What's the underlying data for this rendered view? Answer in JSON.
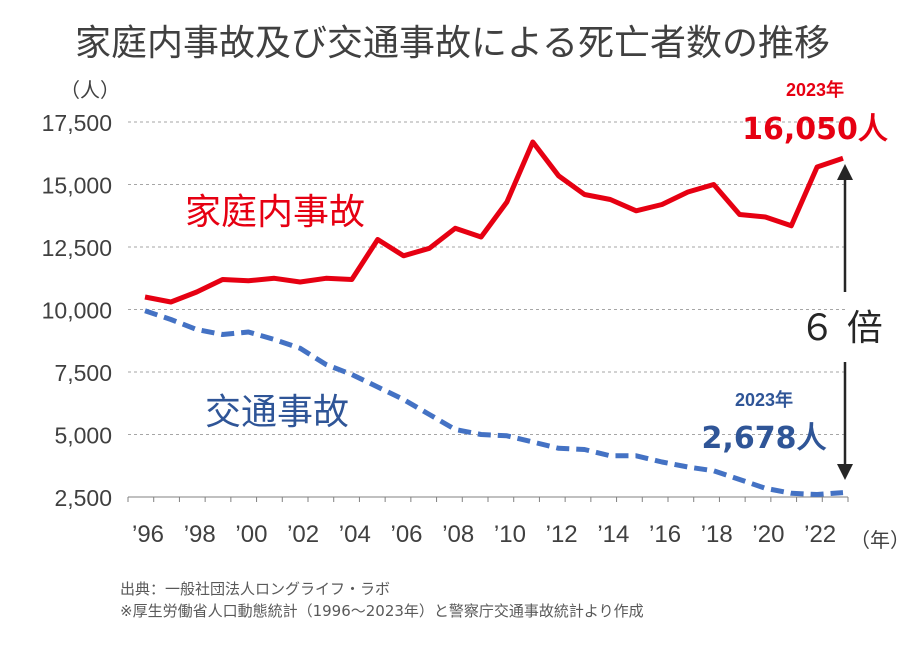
{
  "title": "家庭内事故及び交通事故による死亡者数の推移",
  "y_unit": "（人）",
  "x_unit": "（年）",
  "source_line1": "出典：一般社団法人ロングライフ・ラボ",
  "source_line2": "※厚生労働省人口動態統計（1996～2023年）と警察庁交通事故統計より作成",
  "ratio_label": "６ 倍",
  "colors": {
    "home": "#e60012",
    "traffic": "#4472c4",
    "traffic_text": "#2f5597",
    "text": "#404040",
    "grid": "#a6a6a6"
  },
  "chart_data": {
    "type": "line",
    "title": "家庭内事故及び交通事故による死亡者数の推移",
    "ylabel": "（人）",
    "xlabel": "（年）",
    "ylim": [
      2500,
      17500
    ],
    "yticks": [
      "2,500",
      "5,000",
      "7,500",
      "10,000",
      "12,500",
      "15,000",
      "17,500"
    ],
    "ytick_values": [
      2500,
      5000,
      7500,
      10000,
      12500,
      15000,
      17500
    ],
    "x": [
      1996,
      1997,
      1998,
      1999,
      2000,
      2001,
      2002,
      2003,
      2004,
      2005,
      2006,
      2007,
      2008,
      2009,
      2010,
      2011,
      2012,
      2013,
      2014,
      2015,
      2016,
      2017,
      2018,
      2019,
      2020,
      2021,
      2022,
      2023
    ],
    "xtick_labels": [
      "’96",
      "’98",
      "’00",
      "’02",
      "’04",
      "’06",
      "’08",
      "’10",
      "’12",
      "’14",
      "’16",
      "’18",
      "’20",
      "’22"
    ],
    "xtick_years": [
      1996,
      1998,
      2000,
      2002,
      2004,
      2006,
      2008,
      2010,
      2012,
      2014,
      2016,
      2018,
      2020,
      2022
    ],
    "grid": true,
    "series": [
      {
        "name": "家庭内事故",
        "style": "solid",
        "values": [
          10500,
          10300,
          10700,
          11200,
          11150,
          11250,
          11100,
          11250,
          11200,
          12800,
          12150,
          12450,
          13250,
          12900,
          14300,
          16700,
          15350,
          14600,
          14400,
          13950,
          14200,
          14700,
          15000,
          13800,
          13700,
          13350,
          15700,
          16050
        ],
        "annotation_year": "2023年",
        "annotation_value": "16,050人"
      },
      {
        "name": "交通事故",
        "style": "dashed",
        "values": [
          9950,
          9600,
          9200,
          9000,
          9100,
          8800,
          8450,
          7800,
          7400,
          6900,
          6400,
          5800,
          5200,
          5000,
          4950,
          4700,
          4450,
          4400,
          4150,
          4150,
          3900,
          3700,
          3550,
          3200,
          2850,
          2650,
          2600,
          2678
        ],
        "annotation_year": "2023年",
        "annotation_value": "2,678人"
      }
    ]
  }
}
